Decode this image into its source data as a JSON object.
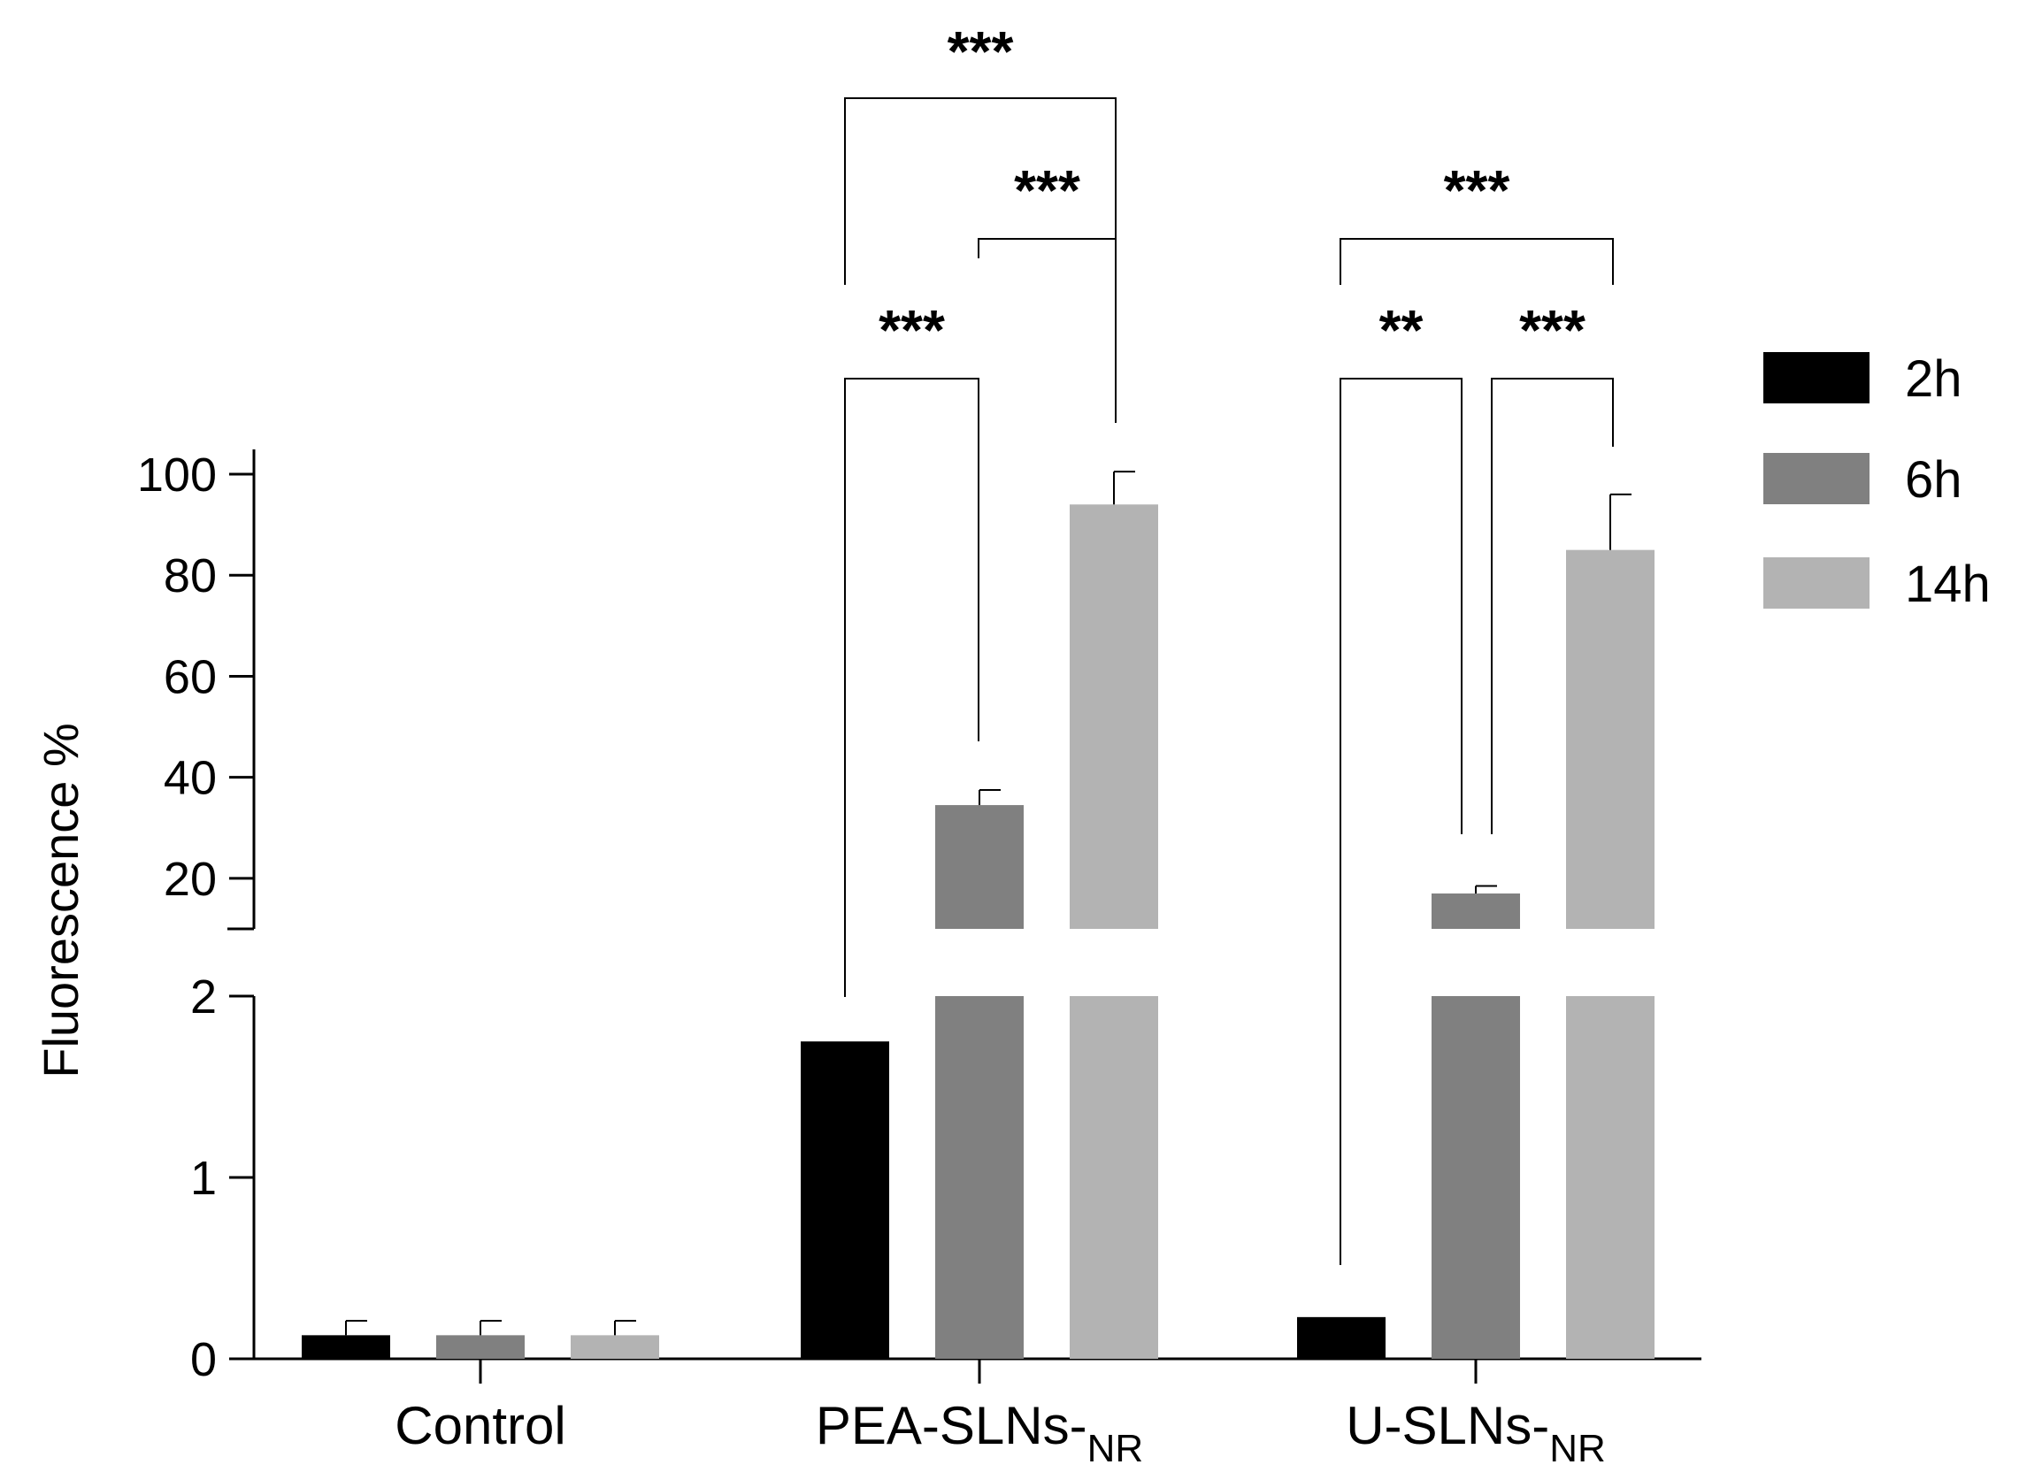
{
  "chart_data": {
    "type": "bar",
    "y_axis_title": "Fluorescence %",
    "y_axis_break": true,
    "y_lower_segment": {
      "range": [
        0,
        2
      ],
      "ticks": [
        "0",
        "1",
        "2"
      ]
    },
    "y_upper_segment": {
      "range": [
        10,
        100
      ],
      "ticks": [
        "20",
        "40",
        "60",
        "80",
        "100"
      ]
    },
    "categories": [
      {
        "main": "Control",
        "sub": ""
      },
      {
        "main": "PEA-SLNs-",
        "sub": "NR"
      },
      {
        "main": "U-SLNs-",
        "sub": "NR"
      }
    ],
    "series": [
      {
        "name": "2h",
        "color": "#000000",
        "values": [
          0.13,
          1.75,
          0.23
        ],
        "errors": [
          0.08,
          0,
          0
        ]
      },
      {
        "name": "6h",
        "color": "#808080",
        "values": [
          0.13,
          34.5,
          17
        ],
        "errors": [
          0.08,
          3,
          1.5
        ]
      },
      {
        "name": "14h",
        "color": "#b3b3b3",
        "values": [
          0.13,
          94,
          85
        ],
        "errors": [
          0.08,
          6.5,
          11
        ]
      }
    ],
    "legend_position": "top-right",
    "significance": [
      {
        "category": 1,
        "from_series": 0,
        "to_series": 2,
        "label": "***",
        "level": 3
      },
      {
        "category": 1,
        "from_series": 1,
        "to_series": 2,
        "label": "***",
        "level": 2
      },
      {
        "category": 1,
        "from_series": 0,
        "to_series": 1,
        "label": "***",
        "level": 1
      },
      {
        "category": 2,
        "from_series": 0,
        "to_series": 2,
        "label": "***",
        "level": 2
      },
      {
        "category": 2,
        "from_series": 0,
        "to_series": 1,
        "label": "**",
        "level": 1
      },
      {
        "category": 2,
        "from_series": 1,
        "to_series": 2,
        "label": "***",
        "level": 1
      }
    ]
  }
}
